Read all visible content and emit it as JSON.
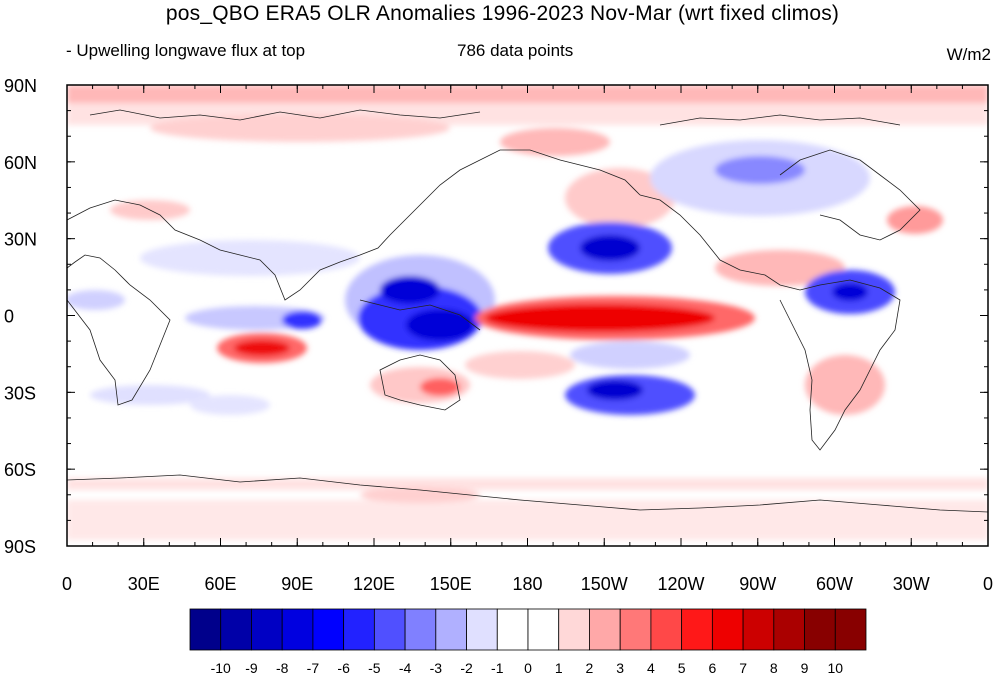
{
  "header": {
    "title": "pos_QBO ERA5 OLR Anomalies 1996-2023 Nov-Mar (wrt fixed climos)",
    "left_note": "- Upwelling longwave flux at top",
    "center_note": "786 data points",
    "units": "W/m2"
  },
  "map": {
    "projection": "cylindrical equidistant",
    "center_longitude": 180,
    "lat_labels": [
      "90N",
      "60N",
      "30N",
      "0",
      "30S",
      "60S",
      "90S"
    ],
    "lon_labels": [
      "0",
      "30E",
      "60E",
      "90E",
      "120E",
      "150E",
      "180",
      "150W",
      "120W",
      "90W",
      "60W",
      "30W",
      "0"
    ]
  },
  "colorbar": {
    "labels": [
      "-10",
      "-9",
      "-8",
      "-7",
      "-6",
      "-5",
      "-4",
      "-3",
      "-2",
      "-1",
      "0",
      "1",
      "2",
      "3",
      "4",
      "5",
      "6",
      "7",
      "8",
      "9",
      "10"
    ],
    "colors": [
      "#00008b",
      "#0000a8",
      "#0000c4",
      "#0000e0",
      "#0000ff",
      "#2222ff",
      "#5050ff",
      "#8080ff",
      "#b0b0ff",
      "#e0e0ff",
      "#ffffff",
      "#ffffff",
      "#ffd8d8",
      "#ffa8a8",
      "#ff7878",
      "#ff4848",
      "#ff1818",
      "#ee0000",
      "#cc0000",
      "#aa0000",
      "#880000"
    ]
  },
  "colors": {
    "strong_negative": "#0000e0",
    "strong_positive": "#ee0000"
  }
}
